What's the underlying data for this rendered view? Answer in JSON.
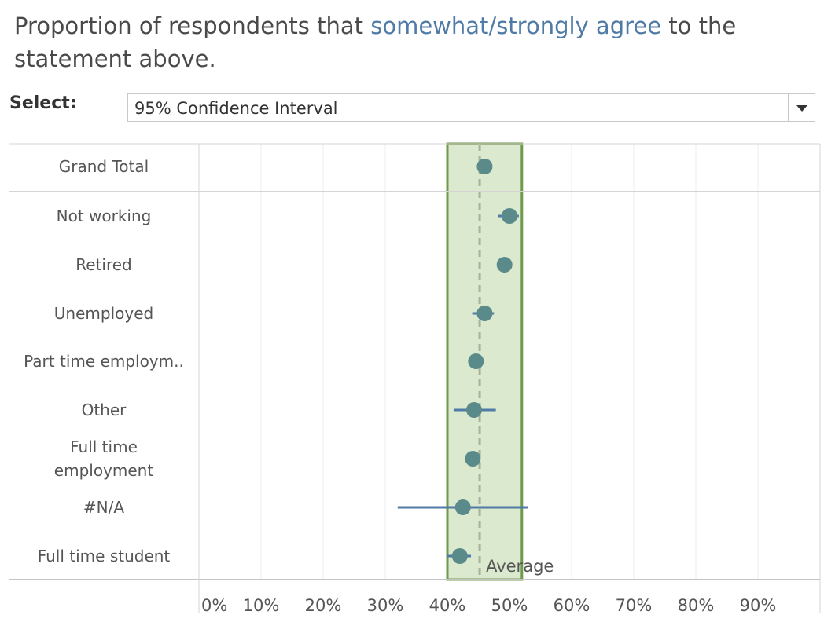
{
  "title": {
    "prefix": "Proportion of respondents that ",
    "highlight": "somewhat/strongly agree",
    "suffix": " to the statement above."
  },
  "select": {
    "label": "Select:",
    "value": "95% Confidence Interval"
  },
  "colors": {
    "point": "#5b8a8a",
    "error_bar": "#4f7ba6",
    "band_fill": "#dbe9cf",
    "band_border": "#6f9a4c",
    "average_line": "#a6b39a"
  },
  "chart_data": {
    "type": "scatter",
    "categories": [
      "Grand Total",
      "Not working",
      "Retired",
      "Unemployed",
      "Part time employm..",
      "Other",
      "Full time employment",
      "#N/A",
      "Full time student"
    ],
    "values": [
      0.46,
      0.5,
      0.492,
      0.46,
      0.446,
      0.443,
      0.441,
      0.425,
      0.42
    ],
    "ci_low": [
      null,
      0.482,
      null,
      0.44,
      null,
      0.41,
      null,
      0.32,
      0.4
    ],
    "ci_high": [
      null,
      0.515,
      null,
      0.475,
      null,
      0.478,
      null,
      0.53,
      0.438
    ],
    "average": 0.452,
    "band": [
      0.4,
      0.52
    ],
    "average_label": "Average",
    "xlim": [
      0,
      1.0
    ],
    "x_ticks": [
      "0%",
      "10%",
      "20%",
      "30%",
      "40%",
      "50%",
      "60%",
      "70%",
      "80%",
      "90%"
    ],
    "grid": true
  }
}
